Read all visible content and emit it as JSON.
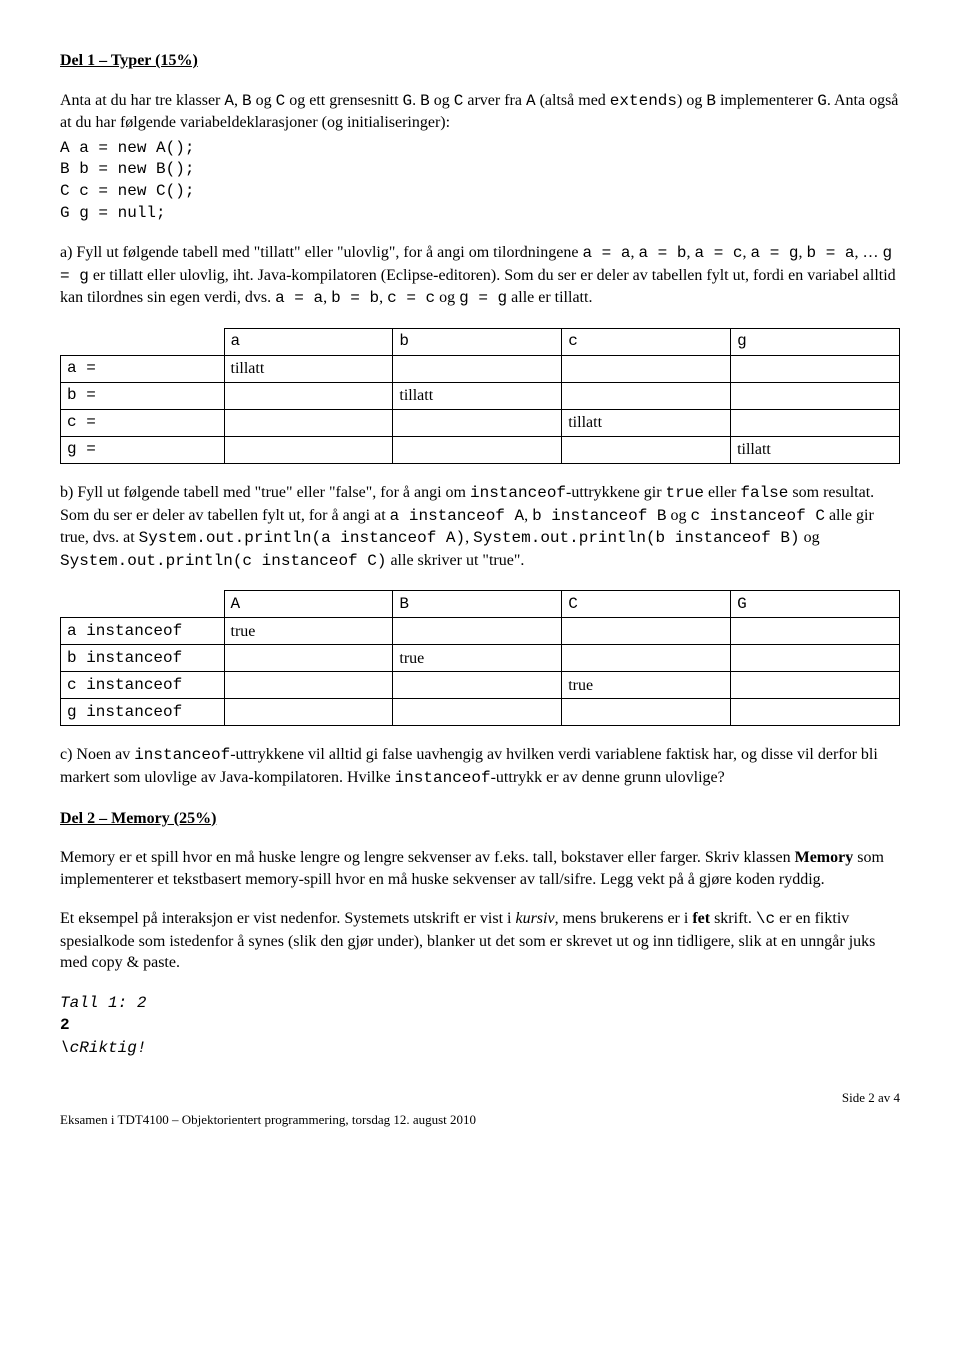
{
  "del1": {
    "title": "Del 1 – Typer (15%)",
    "intro_html": "Anta at du har tre klasser <span class='mono'>A</span>, <span class='mono'>B</span> og <span class='mono'>C</span> og ett grensesnitt <span class='mono'>G</span>. <span class='mono'>B</span> og <span class='mono'>C</span> arver fra <span class='mono'>A</span> (altså med <span class='mono'>extends</span>) og <span class='mono'>B</span> implementerer <span class='mono'>G</span>. Anta også at du har følgende variabeldeklarasjoner (og initialiseringer):",
    "decls": [
      "A a = new A();",
      "B b = new B();",
      "C c = new C();",
      "G g = null;"
    ],
    "part_a_html": "a) Fyll ut følgende tabell med \"tillatt\" eller \"ulovlig\", for å angi om tilordningene <span class='mono'>a = a</span>, <span class='mono'>a = b</span>, <span class='mono'>a = c</span>, <span class='mono'>a = g</span>, <span class='mono'>b = a</span>, … <span class='mono'>g = g</span> er tillatt eller ulovlig, iht. Java-kompilatoren (Eclipse-editoren). Som du ser er deler av tabellen fylt ut, fordi en variabel alltid kan tilordnes sin egen verdi, dvs. <span class='mono'>a = a</span>, <span class='mono'>b = b</span>, <span class='mono'>c = c</span> og <span class='mono'>g = g</span> alle er tillatt.",
    "table1": {
      "cols": [
        "a",
        "b",
        "c",
        "g"
      ],
      "rows": [
        {
          "head": "a =",
          "cells": [
            "tillatt",
            "",
            "",
            ""
          ]
        },
        {
          "head": "b =",
          "cells": [
            "",
            "tillatt",
            "",
            ""
          ]
        },
        {
          "head": "c =",
          "cells": [
            "",
            "",
            "tillatt",
            ""
          ]
        },
        {
          "head": "g =",
          "cells": [
            "",
            "",
            "",
            "tillatt"
          ]
        }
      ]
    },
    "part_b_html": "b) Fyll ut følgende tabell med \"true\" eller \"false\", for å angi om <span class='mono'>instanceof</span>-uttrykkene gir <span class='mono'>true</span> eller <span class='mono'>false</span> som resultat. Som du ser er deler av tabellen fylt ut, for å angi at <span class='mono'>a instanceof A</span>, <span class='mono'>b instanceof B</span> og <span class='mono'>c instanceof C</span> alle gir true, dvs. at <span class='mono'>System.out.println(a instanceof A)</span>, <span class='mono'>System.out.println(b instanceof B)</span> og <span class='mono'>System.out.println(c instanceof C)</span> alle skriver ut \"true\".",
    "table2": {
      "cols": [
        "A",
        "B",
        "C",
        "G"
      ],
      "rows": [
        {
          "head": "a instanceof",
          "cells": [
            "true",
            "",
            "",
            ""
          ]
        },
        {
          "head": "b instanceof",
          "cells": [
            "",
            "true",
            "",
            ""
          ]
        },
        {
          "head": "c instanceof",
          "cells": [
            "",
            "",
            "true",
            ""
          ]
        },
        {
          "head": "g instanceof",
          "cells": [
            "",
            "",
            "",
            ""
          ]
        }
      ]
    },
    "part_c_html": "c) Noen av <span class='mono'>instanceof</span>-uttrykkene vil alltid gi false uavhengig av hvilken verdi variablene faktisk har, og disse vil derfor bli markert som ulovlige av Java-kompilatoren. Hvilke <span class='mono'>instanceof</span>-uttrykk er av denne grunn ulovlige?"
  },
  "del2": {
    "title": "Del 2 – Memory (25%)",
    "p1_html": "Memory er et spill hvor en må huske lengre og lengre sekvenser av f.eks. tall, bokstaver eller farger. Skriv klassen <b>Memory</b> som implementerer et tekstbasert memory-spill hvor en må huske sekvenser av tall/sifre. Legg vekt på å gjøre koden ryddig.",
    "p2_html": "Et eksempel på interaksjon er vist nedenfor. Systemets utskrift er vist i <i>kursiv</i>, mens brukerens er i <b>fet</b> skrift. <span class='mono'>\\c</span> er en fiktiv spesialkode som istedenfor å synes (slik den gjør under), blanker ut det som er skrevet ut og inn tidligere, slik at en unngår juks med copy &amp; paste.",
    "example": {
      "line1": "Tall 1: 2",
      "line2": "2",
      "line3": "\\cRiktig!"
    }
  },
  "footer": {
    "left": "Eksamen i TDT4100 – Objektorientert programmering, torsdag 12. august 2010",
    "right": "Side 2 av 4"
  }
}
